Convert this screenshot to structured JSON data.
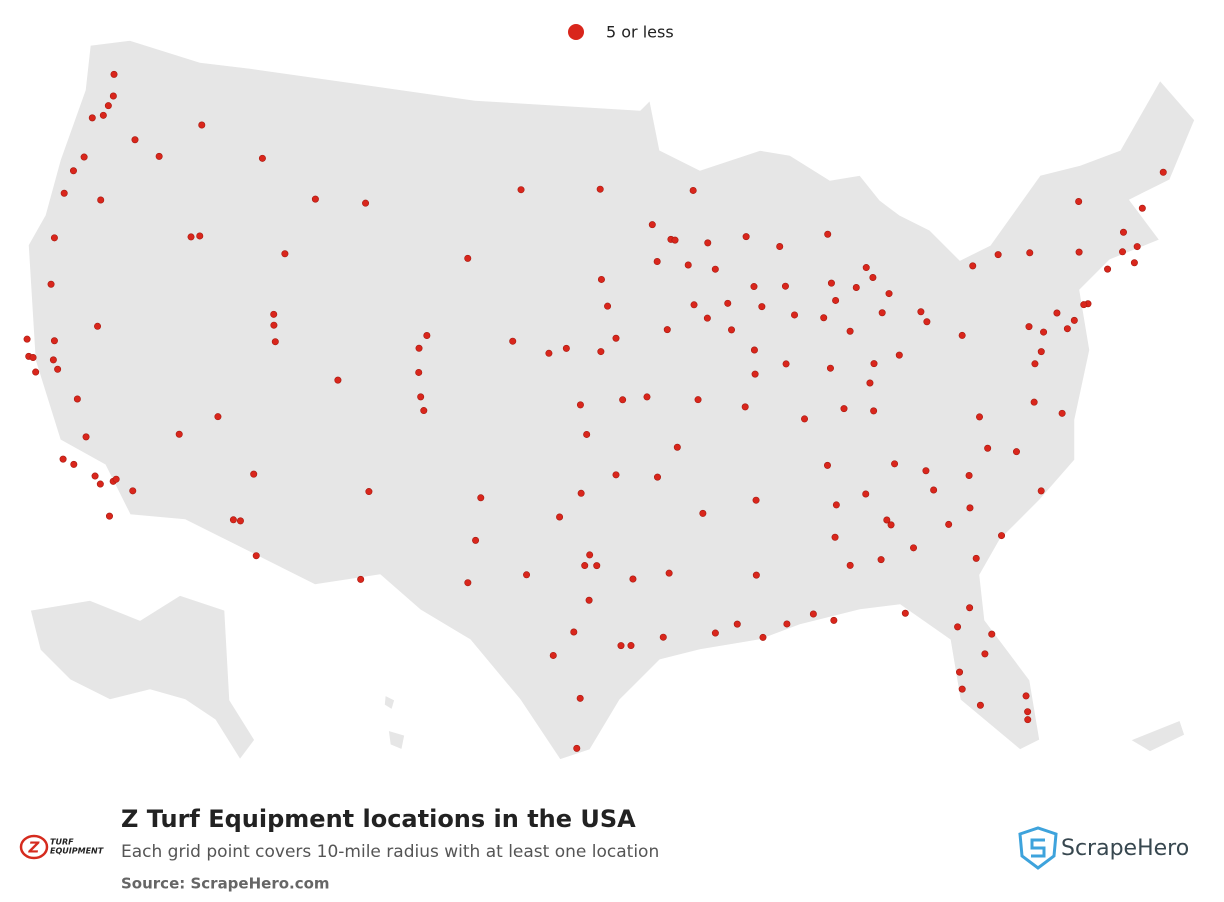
{
  "chart_data": {
    "type": "map",
    "title": "Z Turf Equipment locations in the USA",
    "subtitle": "Each grid point covers 10-mile radius with at least one location",
    "source": "Source: ScrapeHero.com",
    "brand_logo": {
      "mark": "Z",
      "lines": [
        "TURF",
        "EQUIPMENT"
      ]
    },
    "publisher": "ScrapeHero",
    "legend": "top",
    "series": [
      {
        "name": "5 or less",
        "color": "#d9261c",
        "lon": [
          -122.3,
          -122.4,
          -122.2,
          -122.5,
          -122.9,
          -117.4,
          -120.5,
          -119.1,
          -122.7,
          -123.0,
          -123.1,
          -122.9,
          -121.3,
          -116.2,
          -116.6,
          -112.0,
          -114.0,
          -111.0,
          -108.5,
          -121.5,
          -122.4,
          -121.9,
          -122.2,
          -119.8,
          -121.3,
          -121.0,
          -122.4,
          -122.7,
          -119.0,
          -118.2,
          -117.4,
          -117.3,
          -117.9,
          -117.2,
          -119.2,
          -119.7,
          -116.5,
          -119.8,
          -115.1,
          -111.9,
          -112.0,
          -111.7,
          -113.6,
          -112.1,
          -111.8,
          -110.9,
          -111.6,
          -106.6,
          -105.0,
          -104.8,
          -105.1,
          -104.6,
          -104.8,
          -108.6,
          -103.2,
          -106.5,
          -96.8,
          -100.8,
          -96.7,
          -96.0,
          -96.7,
          -98.3,
          -99.1,
          -100.8,
          -97.3,
          -95.7,
          -94.6,
          -97.6,
          -96.0,
          -97.5,
          -98.4,
          -96.8,
          -97.3,
          -97.1,
          -97.7,
          -98.5,
          -95.4,
          -95.8,
          -94.1,
          -97.1,
          -99.7,
          -102.1,
          -101.9,
          -101.8,
          -97.4,
          -97.5,
          -95.3,
          -93.8,
          -91.1,
          -90.1,
          -92.0,
          -90.2,
          -92.3,
          -94.2,
          -93.3,
          -90.2,
          -92.3,
          -90.0,
          -86.8,
          -83.9,
          -85.3,
          -86.8,
          -86.6,
          -86.3,
          -88.0,
          -87.2,
          -89.1,
          -84.4,
          -84.55,
          -83.6,
          -82.0,
          -81.1,
          -85.0,
          -84.3,
          -81.7,
          -82.3,
          -81.4,
          -82.5,
          -82.5,
          -81.9,
          -80.1,
          -80.15,
          -80.2,
          -81.0,
          -80.8,
          -78.6,
          -79.8,
          -82.6,
          -82.4,
          -81.0,
          -79.9,
          -77.9,
          -77.4,
          -76.3,
          -79.9,
          -77.0,
          -76.6,
          -75.2,
          -76.9,
          -76.3,
          -75.5,
          -80.0,
          -74.0,
          -74.2,
          -74.8,
          -73.8,
          -76.1,
          -77.6,
          -78.9,
          -72.7,
          -71.4,
          -71.06,
          -71.8,
          -71.5,
          -70.3,
          -68.8,
          -73.2,
          -81.7,
          -83.0,
          -84.5,
          -84.2,
          -83.5,
          -81.5,
          -83.05,
          -85.7,
          -84.55,
          -83.7,
          -85.6,
          -83.95,
          -85.6,
          -86.2,
          -85.1,
          -86.25,
          -87.6,
          -85.8,
          -84.5,
          -87.6,
          -89.1,
          -89.6,
          -89.65,
          -88.2,
          -87.9,
          -89.4,
          -88.0,
          -89.6,
          -91.5,
          -91.2,
          -93.3,
          -93.1,
          -92.5,
          -92.1,
          -94.2,
          -93.6,
          -91.7,
          -90.6,
          -90.7,
          -96.4,
          -92.3,
          -94.0
        ],
        "lat": [
          47.6,
          47.2,
          48.0,
          48.8,
          47.0,
          47.7,
          46.6,
          46.2,
          45.5,
          44.9,
          44.0,
          42.3,
          44.1,
          43.6,
          43.5,
          43.5,
          46.9,
          45.7,
          45.8,
          38.6,
          37.8,
          37.3,
          37.8,
          36.7,
          37.9,
          37.6,
          40.6,
          38.4,
          35.4,
          34.05,
          34.0,
          34.1,
          33.8,
          32.7,
          34.3,
          34.4,
          33.8,
          39.5,
          36.2,
          40.8,
          41.2,
          40.2,
          37.1,
          33.4,
          33.4,
          32.2,
          35.2,
          35.1,
          39.7,
          38.8,
          40.6,
          38.3,
          41.1,
          39.1,
          44.1,
          31.8,
          46.9,
          46.8,
          43.5,
          41.3,
          40.8,
          40.9,
          40.7,
          41.1,
          37.7,
          39.0,
          39.1,
          38.8,
          36.2,
          35.5,
          34.6,
          32.8,
          32.8,
          33.2,
          30.3,
          29.4,
          29.8,
          29.8,
          30.1,
          31.5,
          32.4,
          32.0,
          33.6,
          35.2,
          27.8,
          25.9,
          32.3,
          32.5,
          30.5,
          29.95,
          30.2,
          32.3,
          34.7,
          36.1,
          37.2,
          38.6,
          38.95,
          35.1,
          36.2,
          36.0,
          35.0,
          33.5,
          34.7,
          32.4,
          30.7,
          30.4,
          30.4,
          33.75,
          33.95,
          32.8,
          33.5,
          32.1,
          32.5,
          30.4,
          30.3,
          29.65,
          28.5,
          27.95,
          27.3,
          26.6,
          26.7,
          26.1,
          25.8,
          29.2,
          35.2,
          35.8,
          36.1,
          35.6,
          34.85,
          34.0,
          32.8,
          34.2,
          37.5,
          36.9,
          37.3,
          38.9,
          39.3,
          39.95,
          40.3,
          40.0,
          40.6,
          40.4,
          40.7,
          40.7,
          40.2,
          42.65,
          43.0,
          43.15,
          42.9,
          41.8,
          41.8,
          42.36,
          42.3,
          43.0,
          43.7,
          44.8,
          44.5,
          41.5,
          40.0,
          39.1,
          39.8,
          41.65,
          41.1,
          42.33,
          42.96,
          42.7,
          43.0,
          44.8,
          43.4,
          42.3,
          39.8,
          41.1,
          41.7,
          38.0,
          38.25,
          38.05,
          41.9,
          42.3,
          40.7,
          39.8,
          40.1,
          43.0,
          43.07,
          44.5,
          44.96,
          44.8,
          43.8,
          44.98,
          44.95,
          44.0,
          46.8,
          45.55,
          41.6,
          41.98,
          41.5,
          42.5,
          42.5,
          42.5,
          44.16
        ]
      }
    ]
  }
}
